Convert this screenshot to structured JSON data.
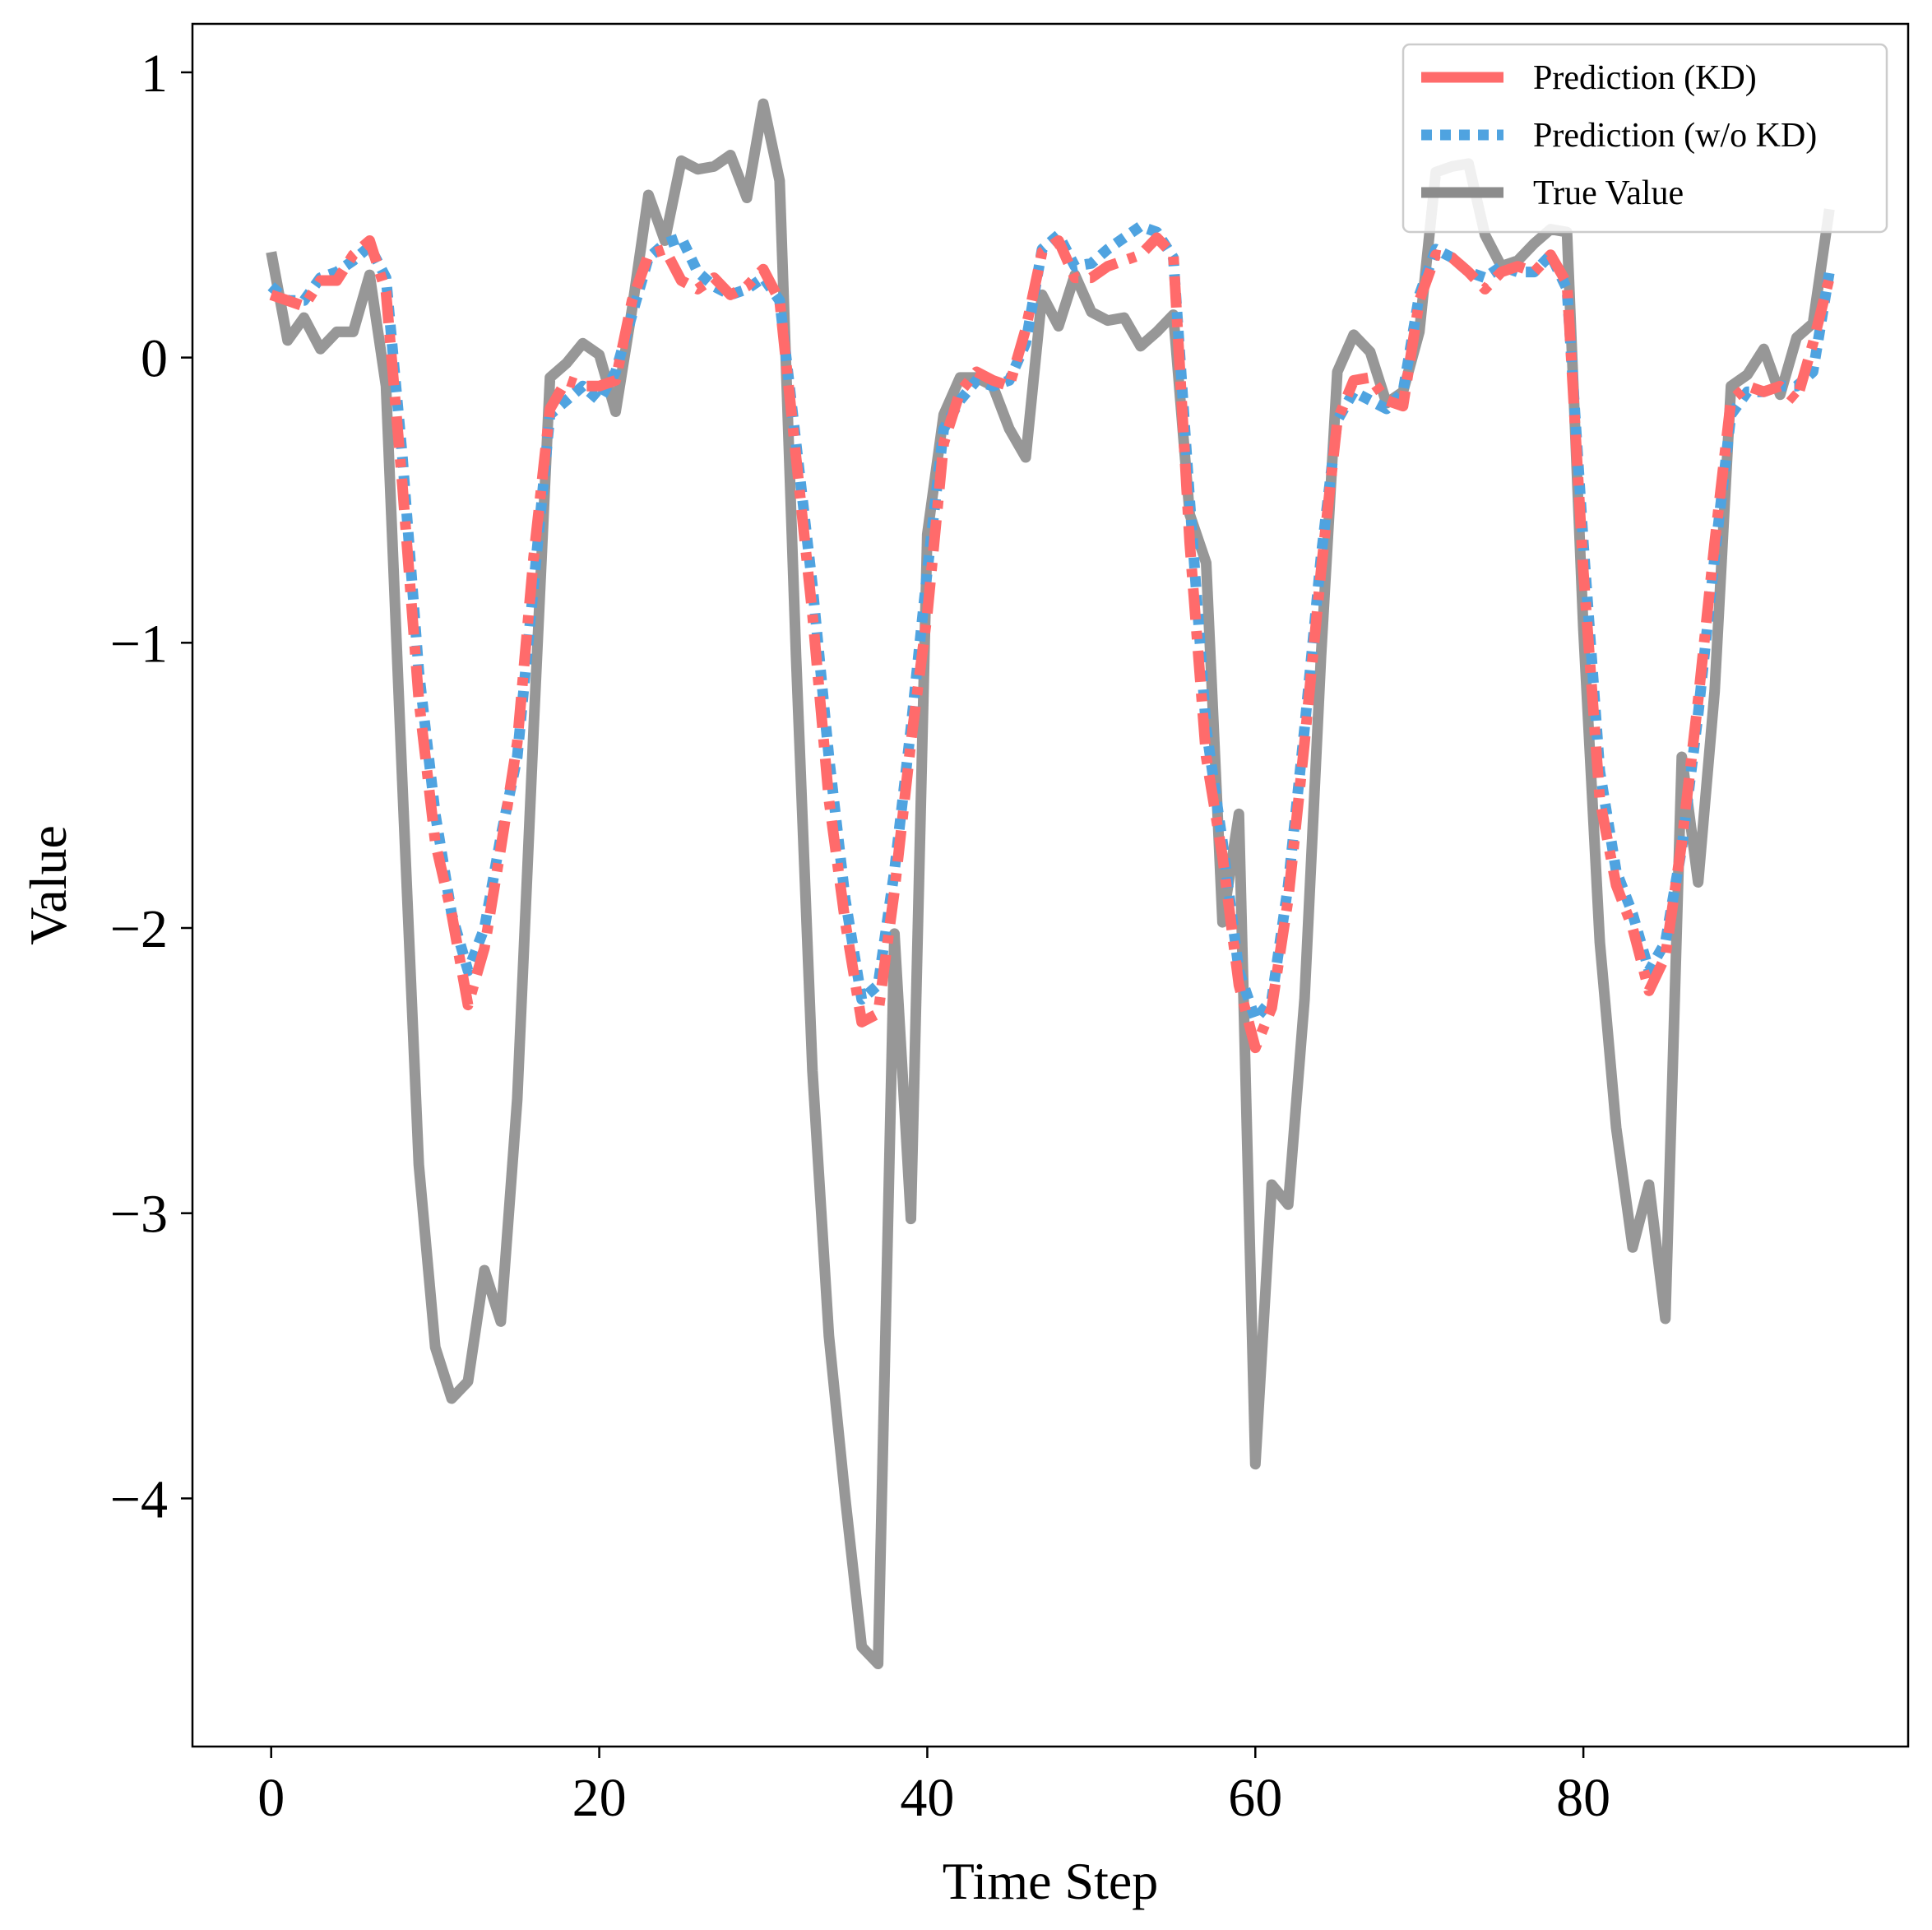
{
  "chart_data": {
    "type": "line",
    "title": "",
    "xlabel": "Time Step",
    "ylabel": "Value",
    "xlim": [
      -4.8,
      99.8
    ],
    "ylim": [
      -4.87,
      1.17
    ],
    "xticks": [
      0,
      20,
      40,
      60,
      80
    ],
    "xtick_labels": [
      "0",
      "20",
      "40",
      "60",
      "80"
    ],
    "yticks": [
      1,
      0,
      -1,
      -2,
      -3,
      -4
    ],
    "ytick_labels": [
      "1",
      "0",
      "−1",
      "−2",
      "−3",
      "−4"
    ],
    "grid": false,
    "legend_position": "top-right",
    "x": [
      0,
      1,
      2,
      3,
      4,
      5,
      6,
      7,
      8,
      9,
      10,
      11,
      12,
      13,
      14,
      15,
      16,
      17,
      18,
      19,
      20,
      21,
      22,
      23,
      24,
      25,
      26,
      27,
      28,
      29,
      30,
      31,
      32,
      33,
      34,
      35,
      36,
      37,
      38,
      39,
      40,
      41,
      42,
      43,
      44,
      45,
      46,
      47,
      48,
      49,
      50,
      51,
      52,
      53,
      54,
      55,
      56,
      57,
      58,
      59,
      60,
      61,
      62,
      63,
      64,
      65,
      66,
      67,
      68,
      69,
      70,
      71,
      72,
      73,
      74,
      75,
      76,
      77,
      78,
      79,
      80,
      81,
      82,
      83,
      84,
      85,
      86,
      87,
      88,
      89,
      90,
      91,
      92,
      93,
      94,
      95
    ],
    "series": [
      {
        "name": "Prediction (KD)",
        "color": "#ff6b6b",
        "style": "dashdot",
        "values": [
          0.22,
          0.2,
          0.18,
          0.27,
          0.27,
          0.36,
          0.41,
          0.23,
          -0.45,
          -1.2,
          -1.7,
          -1.95,
          -2.27,
          -2.07,
          -1.72,
          -1.35,
          -0.7,
          -0.18,
          -0.08,
          -0.1,
          -0.1,
          -0.08,
          0.2,
          0.36,
          0.38,
          0.27,
          0.24,
          0.28,
          0.22,
          0.25,
          0.31,
          0.2,
          -0.35,
          -0.9,
          -1.55,
          -1.98,
          -2.33,
          -2.3,
          -1.87,
          -1.35,
          -0.9,
          -0.3,
          -0.12,
          -0.05,
          -0.08,
          -0.1,
          0.1,
          0.37,
          0.41,
          0.28,
          0.28,
          0.32,
          0.34,
          0.36,
          0.42,
          0.36,
          -0.65,
          -1.4,
          -1.75,
          -2.2,
          -2.42,
          -2.28,
          -1.9,
          -1.35,
          -0.75,
          -0.22,
          -0.08,
          -0.07,
          -0.15,
          -0.17,
          0.2,
          0.36,
          0.35,
          0.3,
          0.24,
          0.3,
          0.32,
          0.3,
          0.36,
          0.26,
          -0.75,
          -1.55,
          -1.85,
          -2.0,
          -2.22,
          -2.1,
          -1.7,
          -1.2,
          -0.65,
          -0.15,
          -0.1,
          -0.12,
          -0.1,
          -0.15,
          0.05,
          0.28
        ]
      },
      {
        "name": "Prediction (w/o KD)",
        "color": "#4fa3e0",
        "style": "dotted",
        "values": [
          0.25,
          0.2,
          0.2,
          0.28,
          0.3,
          0.34,
          0.39,
          0.28,
          -0.35,
          -1.1,
          -1.6,
          -1.95,
          -2.15,
          -2.0,
          -1.68,
          -1.4,
          -0.8,
          -0.2,
          -0.15,
          -0.1,
          -0.15,
          -0.05,
          0.15,
          0.35,
          0.4,
          0.42,
          0.3,
          0.25,
          0.22,
          0.24,
          0.28,
          0.2,
          -0.3,
          -0.8,
          -1.4,
          -1.9,
          -2.25,
          -2.2,
          -1.8,
          -1.3,
          -0.75,
          -0.25,
          -0.15,
          -0.08,
          -0.1,
          -0.08,
          0.05,
          0.38,
          0.43,
          0.32,
          0.33,
          0.38,
          0.42,
          0.46,
          0.44,
          0.35,
          -0.5,
          -1.3,
          -1.7,
          -2.15,
          -2.32,
          -2.25,
          -1.85,
          -1.3,
          -0.7,
          -0.22,
          -0.12,
          -0.15,
          -0.18,
          -0.12,
          0.22,
          0.38,
          0.35,
          0.3,
          0.28,
          0.32,
          0.3,
          0.3,
          0.36,
          0.24,
          -0.65,
          -1.45,
          -1.8,
          -1.95,
          -2.15,
          -2.05,
          -1.72,
          -1.25,
          -0.7,
          -0.2,
          -0.12,
          -0.12,
          -0.1,
          -0.1,
          -0.05,
          0.3
        ]
      },
      {
        "name": "True Value",
        "color": "#8c8c8c",
        "style": "solid",
        "values": [
          0.37,
          0.06,
          0.14,
          0.03,
          0.09,
          0.09,
          0.29,
          -0.1,
          -1.5,
          -2.83,
          -3.47,
          -3.65,
          -3.59,
          -3.2,
          -3.38,
          -2.6,
          -1.3,
          -0.07,
          -0.02,
          0.05,
          0.01,
          -0.19,
          0.17,
          0.57,
          0.41,
          0.69,
          0.66,
          0.67,
          0.71,
          0.56,
          0.89,
          0.62,
          -1.05,
          -2.5,
          -3.43,
          -4.0,
          -4.52,
          -4.58,
          -2.02,
          -3.02,
          -0.62,
          -0.2,
          -0.07,
          -0.07,
          -0.1,
          -0.25,
          -0.35,
          0.22,
          0.11,
          0.29,
          0.16,
          0.13,
          0.14,
          0.04,
          0.09,
          0.15,
          -0.55,
          -0.72,
          -1.98,
          -1.6,
          -3.88,
          -2.9,
          -2.97,
          -2.25,
          -1.05,
          -0.05,
          0.08,
          0.02,
          -0.16,
          -0.12,
          0.09,
          0.65,
          0.67,
          0.68,
          0.43,
          0.32,
          0.34,
          0.4,
          0.45,
          0.44,
          -0.95,
          -2.05,
          -2.7,
          -3.12,
          -2.9,
          -3.37,
          -1.4,
          -1.84,
          -1.17,
          -0.1,
          -0.06,
          0.03,
          -0.13,
          0.07,
          0.12,
          0.52
        ]
      }
    ]
  }
}
